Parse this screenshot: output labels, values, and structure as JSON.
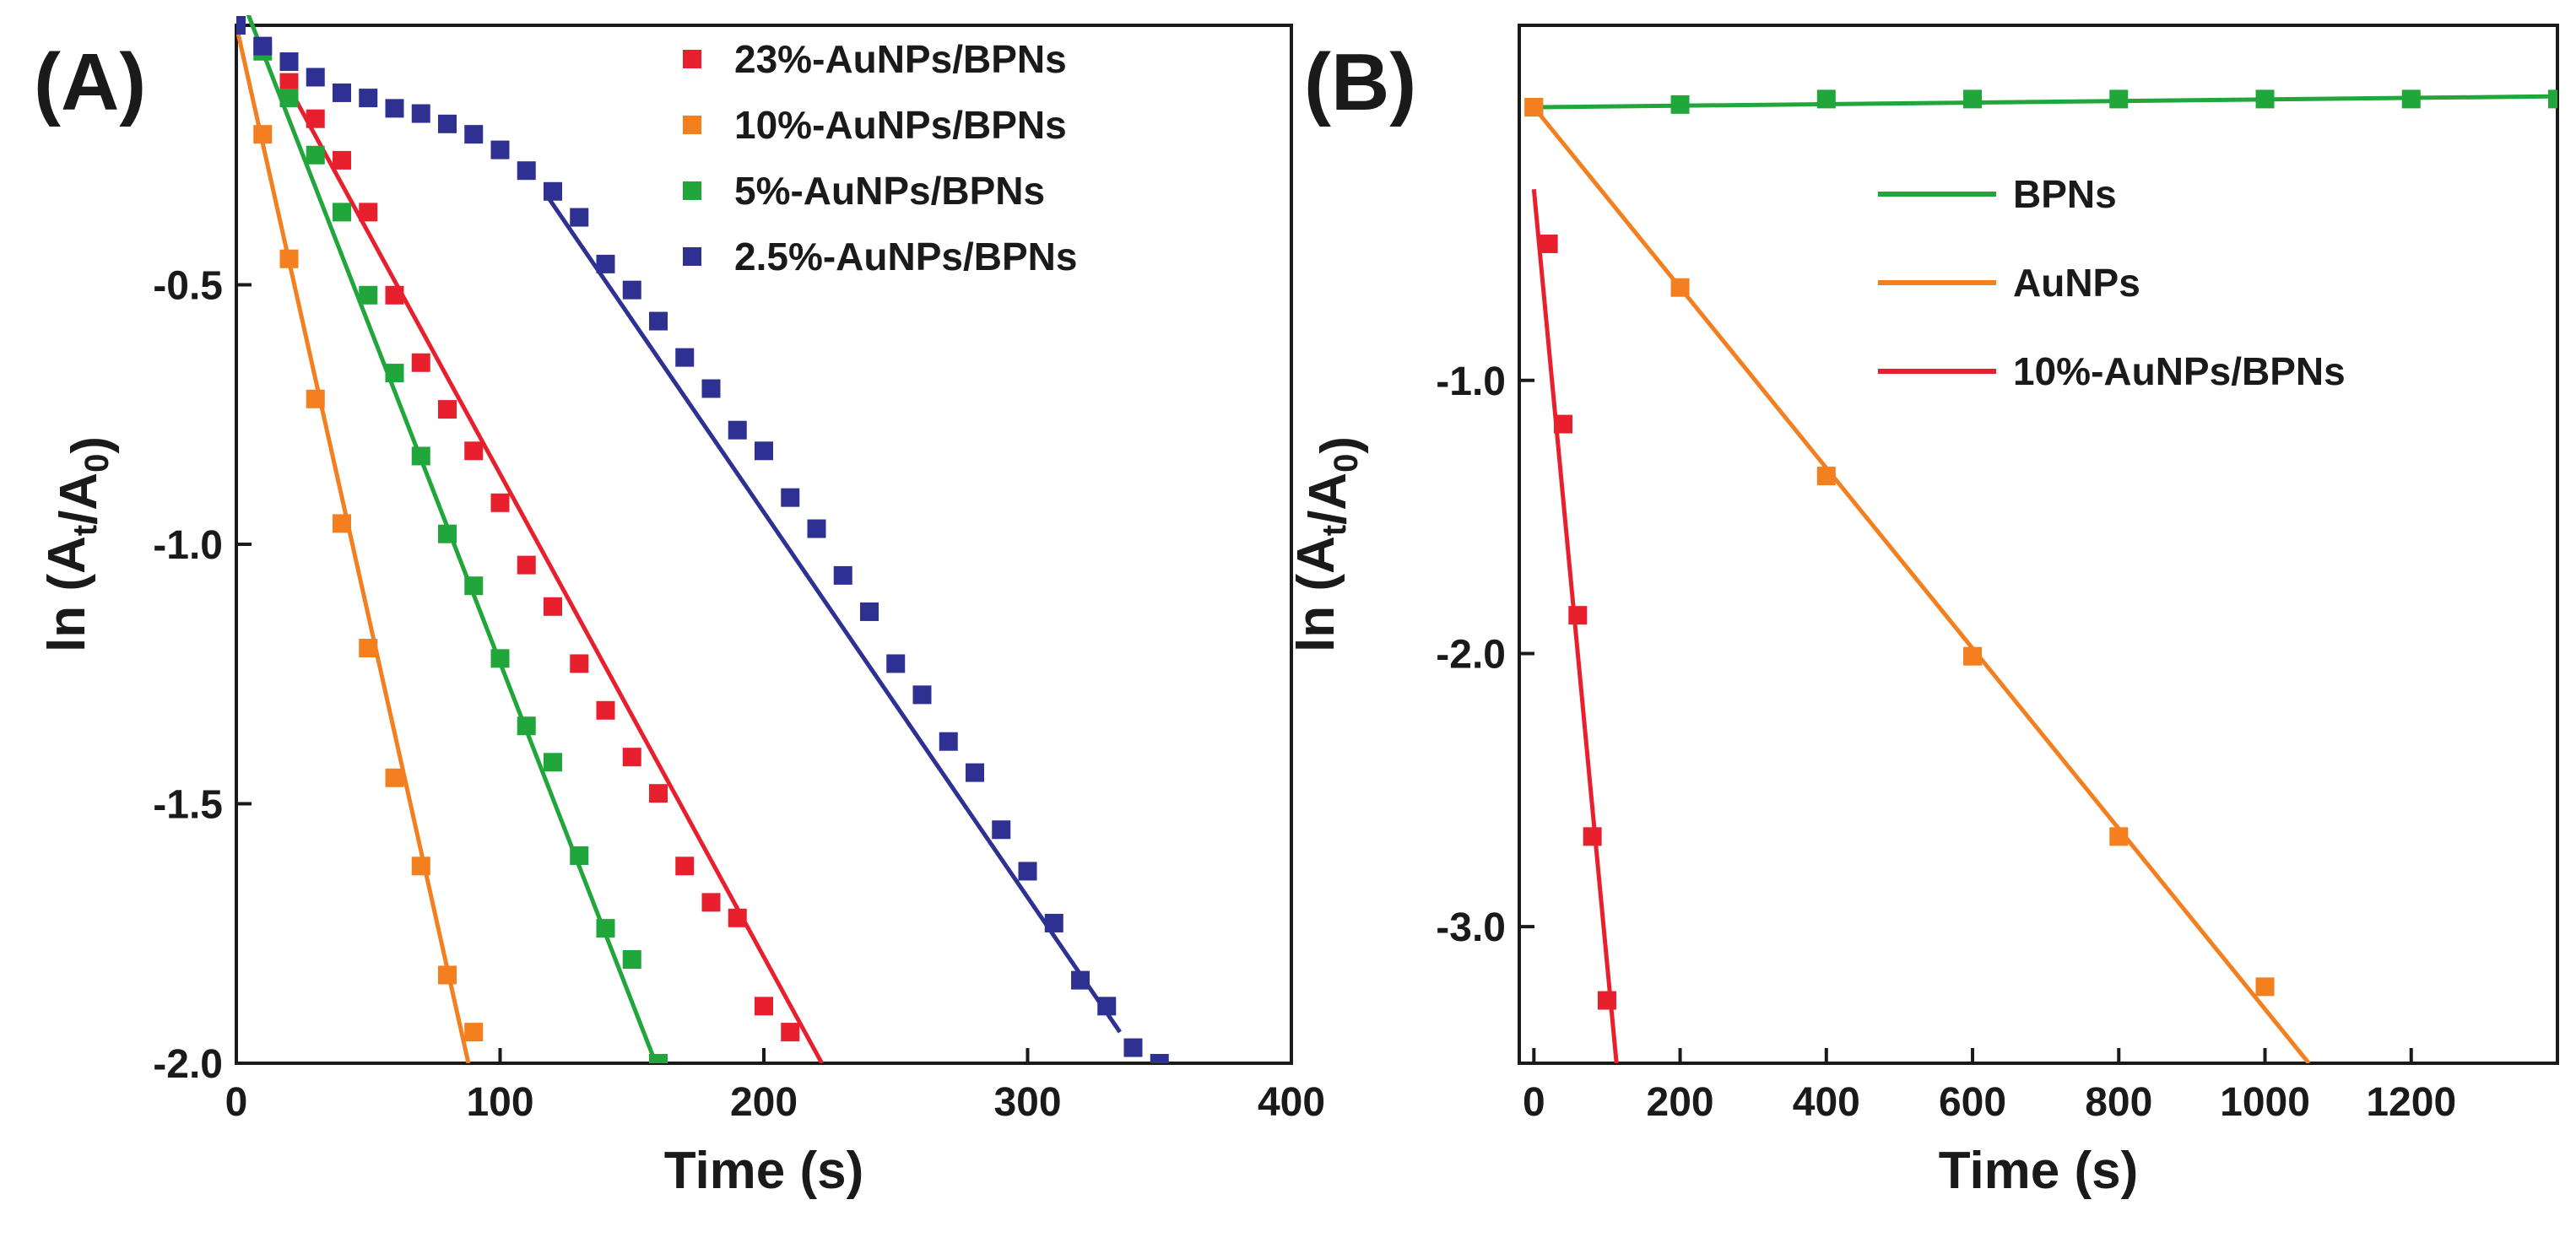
{
  "chart_data": [
    {
      "panel_label": "(A)",
      "type": "scatter",
      "xlabel": "Time (s)",
      "ylabel": {
        "prefix": "ln (A",
        "sub1": "t",
        "mid": "/A",
        "sub2": "0",
        "suffix": ")"
      },
      "xlim": [
        0,
        400
      ],
      "ylim": [
        -2.0,
        0.0
      ],
      "xticks": [
        0,
        100,
        200,
        300,
        400
      ],
      "xtick_labels": [
        "0",
        "100",
        "200",
        "300",
        "400"
      ],
      "yticks": [
        -0.5,
        -1.0,
        -1.5,
        -2.0
      ],
      "ytick_labels": [
        "-0.5",
        "-1.0",
        "-1.5",
        "-2.0"
      ],
      "legend_position": "top-right",
      "series": [
        {
          "name": "23%-AuNPs/BPNs",
          "color": "#e8202e",
          "points": [
            [
              20,
              -0.11
            ],
            [
              30,
              -0.18
            ],
            [
              40,
              -0.26
            ],
            [
              50,
              -0.36
            ],
            [
              60,
              -0.52
            ],
            [
              70,
              -0.65
            ],
            [
              80,
              -0.74
            ],
            [
              90,
              -0.82
            ],
            [
              100,
              -0.92
            ],
            [
              110,
              -1.04
            ],
            [
              120,
              -1.12
            ],
            [
              130,
              -1.23
            ],
            [
              140,
              -1.32
            ],
            [
              150,
              -1.41
            ],
            [
              160,
              -1.48
            ],
            [
              170,
              -1.62
            ],
            [
              180,
              -1.69
            ],
            [
              190,
              -1.72
            ],
            [
              200,
              -1.89
            ],
            [
              210,
              -1.94
            ]
          ],
          "fit": [
            [
              20,
              -0.12
            ],
            [
              222,
              -2.0
            ]
          ]
        },
        {
          "name": "10%-AuNPs/BPNs",
          "color": "#f47f1f",
          "points": [
            [
              0,
              0.0
            ],
            [
              10,
              -0.21
            ],
            [
              20,
              -0.45
            ],
            [
              30,
              -0.72
            ],
            [
              40,
              -0.96
            ],
            [
              50,
              -1.2
            ],
            [
              60,
              -1.45
            ],
            [
              70,
              -1.62
            ],
            [
              80,
              -1.83
            ],
            [
              90,
              -1.94
            ]
          ],
          "fit": [
            [
              0,
              0.0
            ],
            [
              88,
              -2.0
            ]
          ]
        },
        {
          "name": "5%-AuNPs/BPNs",
          "color": "#20a63a",
          "points": [
            [
              10,
              -0.05
            ],
            [
              20,
              -0.14
            ],
            [
              30,
              -0.25
            ],
            [
              40,
              -0.36
            ],
            [
              50,
              -0.52
            ],
            [
              60,
              -0.67
            ],
            [
              70,
              -0.83
            ],
            [
              80,
              -0.98
            ],
            [
              90,
              -1.08
            ],
            [
              100,
              -1.22
            ],
            [
              110,
              -1.35
            ],
            [
              120,
              -1.42
            ],
            [
              130,
              -1.6
            ],
            [
              140,
              -1.74
            ],
            [
              150,
              -1.8
            ],
            [
              160,
              -2.0
            ]
          ],
          "fit": [
            [
              0,
              0.08
            ],
            [
              159,
              -2.0
            ]
          ]
        },
        {
          "name": "2.5%-AuNPs/BPNs",
          "color": "#2e3192",
          "points": [
            [
              0,
              0.0
            ],
            [
              10,
              -0.04
            ],
            [
              20,
              -0.07
            ],
            [
              30,
              -0.1
            ],
            [
              40,
              -0.13
            ],
            [
              50,
              -0.14
            ],
            [
              60,
              -0.16
            ],
            [
              70,
              -0.17
            ],
            [
              80,
              -0.19
            ],
            [
              90,
              -0.21
            ],
            [
              100,
              -0.24
            ],
            [
              110,
              -0.28
            ],
            [
              120,
              -0.32
            ],
            [
              130,
              -0.37
            ],
            [
              140,
              -0.46
            ],
            [
              150,
              -0.51
            ],
            [
              160,
              -0.57
            ],
            [
              170,
              -0.64
            ],
            [
              180,
              -0.7
            ],
            [
              190,
              -0.78
            ],
            [
              200,
              -0.82
            ],
            [
              210,
              -0.91
            ],
            [
              220,
              -0.97
            ],
            [
              230,
              -1.06
            ],
            [
              240,
              -1.13
            ],
            [
              250,
              -1.23
            ],
            [
              260,
              -1.29
            ],
            [
              270,
              -1.38
            ],
            [
              280,
              -1.44
            ],
            [
              290,
              -1.55
            ],
            [
              300,
              -1.63
            ],
            [
              310,
              -1.73
            ],
            [
              320,
              -1.84
            ],
            [
              330,
              -1.89
            ],
            [
              340,
              -1.97
            ],
            [
              350,
              -2.0
            ]
          ],
          "fit": [
            [
              118,
              -0.33
            ],
            [
              335,
              -1.94
            ]
          ]
        }
      ]
    },
    {
      "panel_label": "(B)",
      "type": "scatter",
      "xlabel": "Time (s)",
      "ylabel": {
        "prefix": "ln (A",
        "sub1": "t",
        "mid": "/A",
        "sub2": "0",
        "suffix": ")"
      },
      "xlim": [
        -20,
        1400
      ],
      "ylim": [
        -3.5,
        0.3
      ],
      "xticks": [
        0,
        200,
        400,
        600,
        800,
        1000,
        1200
      ],
      "xtick_labels": [
        "0",
        "200",
        "400",
        "600",
        "800",
        "1000",
        "1200"
      ],
      "yticks": [
        -1.0,
        -2.0,
        -3.0
      ],
      "ytick_labels": [
        "-1.0",
        "-2.0",
        "-3.0"
      ],
      "legend_position": "upper-middle",
      "series": [
        {
          "name": "BPNs",
          "color": "#20a63a",
          "points": [
            [
              0,
              0.0
            ],
            [
              200,
              0.01
            ],
            [
              400,
              0.03
            ],
            [
              600,
              0.03
            ],
            [
              800,
              0.03
            ],
            [
              1000,
              0.03
            ],
            [
              1200,
              0.03
            ],
            [
              1400,
              0.03
            ]
          ],
          "fit": [
            [
              0,
              0.0
            ],
            [
              1400,
              0.04
            ]
          ]
        },
        {
          "name": "AuNPs",
          "color": "#f47f1f",
          "points": [
            [
              0,
              0.0
            ],
            [
              200,
              -0.66
            ],
            [
              400,
              -1.35
            ],
            [
              600,
              -2.01
            ],
            [
              800,
              -2.67
            ],
            [
              1000,
              -3.22
            ]
          ],
          "fit": [
            [
              0,
              0.0
            ],
            [
              1060,
              -3.5
            ]
          ]
        },
        {
          "name": "10%-AuNPs/BPNs",
          "color": "#e8202e",
          "points": [
            [
              20,
              -0.5
            ],
            [
              40,
              -1.16
            ],
            [
              60,
              -1.86
            ],
            [
              80,
              -2.67
            ],
            [
              100,
              -3.27
            ]
          ],
          "fit": [
            [
              0,
              -0.3
            ],
            [
              113,
              -3.5
            ]
          ]
        }
      ]
    }
  ]
}
